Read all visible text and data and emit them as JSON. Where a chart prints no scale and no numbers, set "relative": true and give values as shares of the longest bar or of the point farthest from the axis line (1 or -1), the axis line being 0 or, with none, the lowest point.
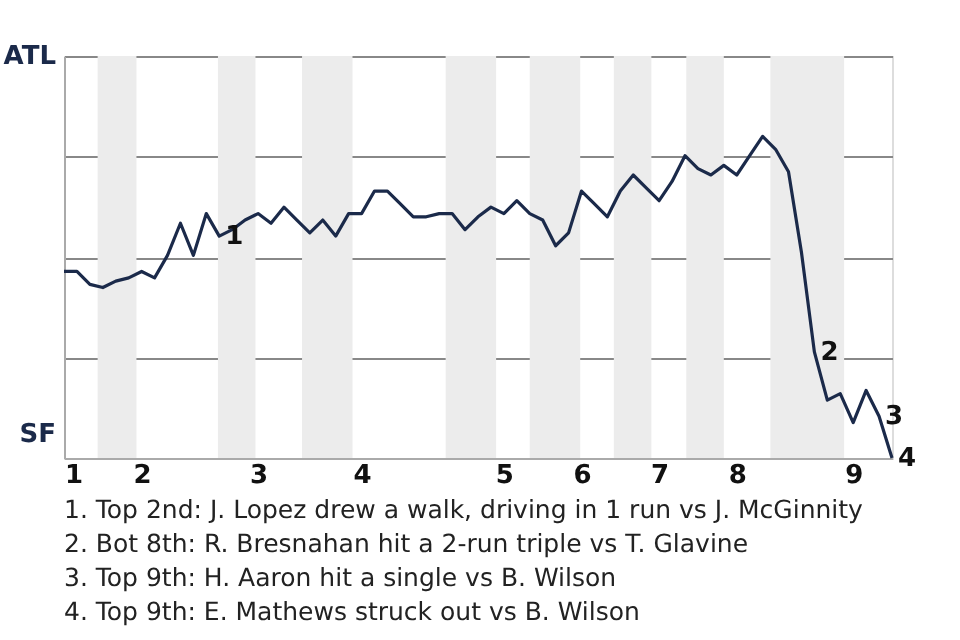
{
  "chart_data": {
    "type": "line",
    "relative": true,
    "categories": [
      "1",
      null,
      null,
      null,
      null,
      null,
      "2",
      null,
      null,
      null,
      null,
      null,
      null,
      null,
      null,
      "3",
      null,
      null,
      null,
      null,
      null,
      null,
      null,
      "4",
      null,
      null,
      null,
      null,
      null,
      null,
      null,
      null,
      null,
      null,
      "5",
      null,
      null,
      null,
      null,
      null,
      "6",
      null,
      null,
      null,
      null,
      null,
      "7",
      null,
      null,
      null,
      null,
      null,
      "8",
      null,
      null,
      null,
      null,
      null,
      null,
      null,
      null,
      "9",
      null,
      null,
      null
    ],
    "series": [
      {
        "color": "#1b2a4a",
        "values": [
          0.58,
          0.58,
          0.54,
          0.53,
          0.55,
          0.56,
          0.58,
          0.56,
          0.63,
          0.73,
          0.63,
          0.76,
          0.69,
          0.71,
          0.74,
          0.76,
          0.73,
          0.78,
          0.74,
          0.7,
          0.74,
          0.69,
          0.76,
          0.76,
          0.83,
          0.83,
          0.79,
          0.75,
          0.75,
          0.76,
          0.76,
          0.71,
          0.75,
          0.78,
          0.76,
          0.8,
          0.76,
          0.74,
          0.66,
          0.7,
          0.83,
          0.79,
          0.75,
          0.83,
          0.88,
          0.84,
          0.8,
          0.86,
          0.94,
          0.9,
          0.88,
          0.91,
          0.88,
          0.94,
          1,
          0.96,
          0.89,
          0.64,
          0.33,
          0.18,
          0.2,
          0.11,
          0.21,
          0.13,
          0
        ]
      }
    ],
    "grid": "y",
    "marker": "none",
    "annotations": [
      "ATL",
      "SF",
      {
        "text": "1",
        "y": 0.69
      },
      "2",
      "3",
      "4",
      "1. Top 2nd: J. Lopez drew a walk, driving in 1 run vs J. McGinnity",
      "2. Bot 8th: R. Bresnahan hit a 2-run triple vs T. Glavine",
      "3. Top 9th: H. Aaron hit a single vs B. Wilson",
      "4. Top 9th: E. Mathews struck out vs B. Wilson"
    ]
  }
}
